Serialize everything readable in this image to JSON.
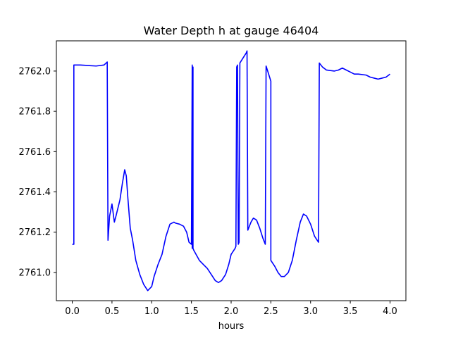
{
  "chart_data": {
    "type": "line",
    "title": "Water Depth h at gauge 46404",
    "xlabel": "hours",
    "ylabel": "",
    "xlim": [
      -0.2,
      4.2
    ],
    "ylim": [
      2760.86,
      2762.15
    ],
    "grid": false,
    "x_ticks": [
      0.0,
      0.5,
      1.0,
      1.5,
      2.0,
      2.5,
      3.0,
      3.5,
      4.0
    ],
    "x_tick_labels": [
      "0.0",
      "0.5",
      "1.0",
      "1.5",
      "2.0",
      "2.5",
      "3.0",
      "3.5",
      "4.0"
    ],
    "y_ticks": [
      2761.0,
      2761.2,
      2761.4,
      2761.6,
      2761.8,
      2762.0
    ],
    "y_tick_labels": [
      "2761.0",
      "2761.2",
      "2761.4",
      "2761.6",
      "2761.8",
      "2762.0"
    ],
    "series": [
      {
        "color": "#0000ff",
        "x": [
          0.0,
          0.02,
          0.02,
          0.1,
          0.3,
          0.4,
          0.44,
          0.45,
          0.47,
          0.5,
          0.53,
          0.55,
          0.6,
          0.63,
          0.66,
          0.68,
          0.7,
          0.73,
          0.76,
          0.8,
          0.85,
          0.9,
          0.95,
          1.0,
          1.03,
          1.08,
          1.13,
          1.18,
          1.23,
          1.28,
          1.3,
          1.35,
          1.4,
          1.44,
          1.47,
          1.5,
          1.51,
          1.51,
          1.52,
          1.52,
          1.53,
          1.6,
          1.65,
          1.7,
          1.75,
          1.8,
          1.84,
          1.88,
          1.93,
          1.97,
          2.0,
          2.05,
          2.06,
          2.07,
          2.08,
          2.09,
          2.1,
          2.11,
          2.19,
          2.2,
          2.21,
          2.25,
          2.28,
          2.32,
          2.36,
          2.4,
          2.43,
          2.44,
          2.5,
          2.5,
          2.55,
          2.59,
          2.63,
          2.67,
          2.72,
          2.77,
          2.82,
          2.87,
          2.91,
          2.95,
          3.0,
          3.05,
          3.1,
          3.11,
          3.15,
          3.2,
          3.3,
          3.35,
          3.4,
          3.45,
          3.5,
          3.55,
          3.6,
          3.7,
          3.75,
          3.8,
          3.85,
          3.9,
          3.95,
          4.0
        ],
        "y": [
          2761.14,
          2761.14,
          2762.03,
          2762.03,
          2762.025,
          2762.03,
          2762.045,
          2761.16,
          2761.28,
          2761.34,
          2761.25,
          2761.28,
          2761.36,
          2761.44,
          2761.51,
          2761.48,
          2761.37,
          2761.22,
          2761.16,
          2761.06,
          2760.99,
          2760.94,
          2760.91,
          2760.93,
          2760.98,
          2761.04,
          2761.09,
          2761.18,
          2761.24,
          2761.25,
          2761.245,
          2761.24,
          2761.23,
          2761.2,
          2761.15,
          2761.14,
          2762.03,
          2761.12,
          2762.02,
          2761.12,
          2761.11,
          2761.06,
          2761.04,
          2761.02,
          2760.99,
          2760.96,
          2760.95,
          2760.96,
          2760.99,
          2761.04,
          2761.09,
          2761.12,
          2761.13,
          2762.02,
          2762.03,
          2761.14,
          2761.15,
          2762.04,
          2762.09,
          2762.1,
          2761.21,
          2761.25,
          2761.27,
          2761.26,
          2761.22,
          2761.17,
          2761.14,
          2762.025,
          2761.95,
          2761.06,
          2761.03,
          2761.0,
          2760.98,
          2760.98,
          2761.0,
          2761.06,
          2761.16,
          2761.25,
          2761.29,
          2761.28,
          2761.24,
          2761.18,
          2761.15,
          2762.04,
          2762.02,
          2762.005,
          2762.0,
          2762.005,
          2762.015,
          2762.005,
          2761.995,
          2761.985,
          2761.985,
          2761.98,
          2761.97,
          2761.965,
          2761.96,
          2761.965,
          2761.97,
          2761.985
        ]
      }
    ]
  }
}
